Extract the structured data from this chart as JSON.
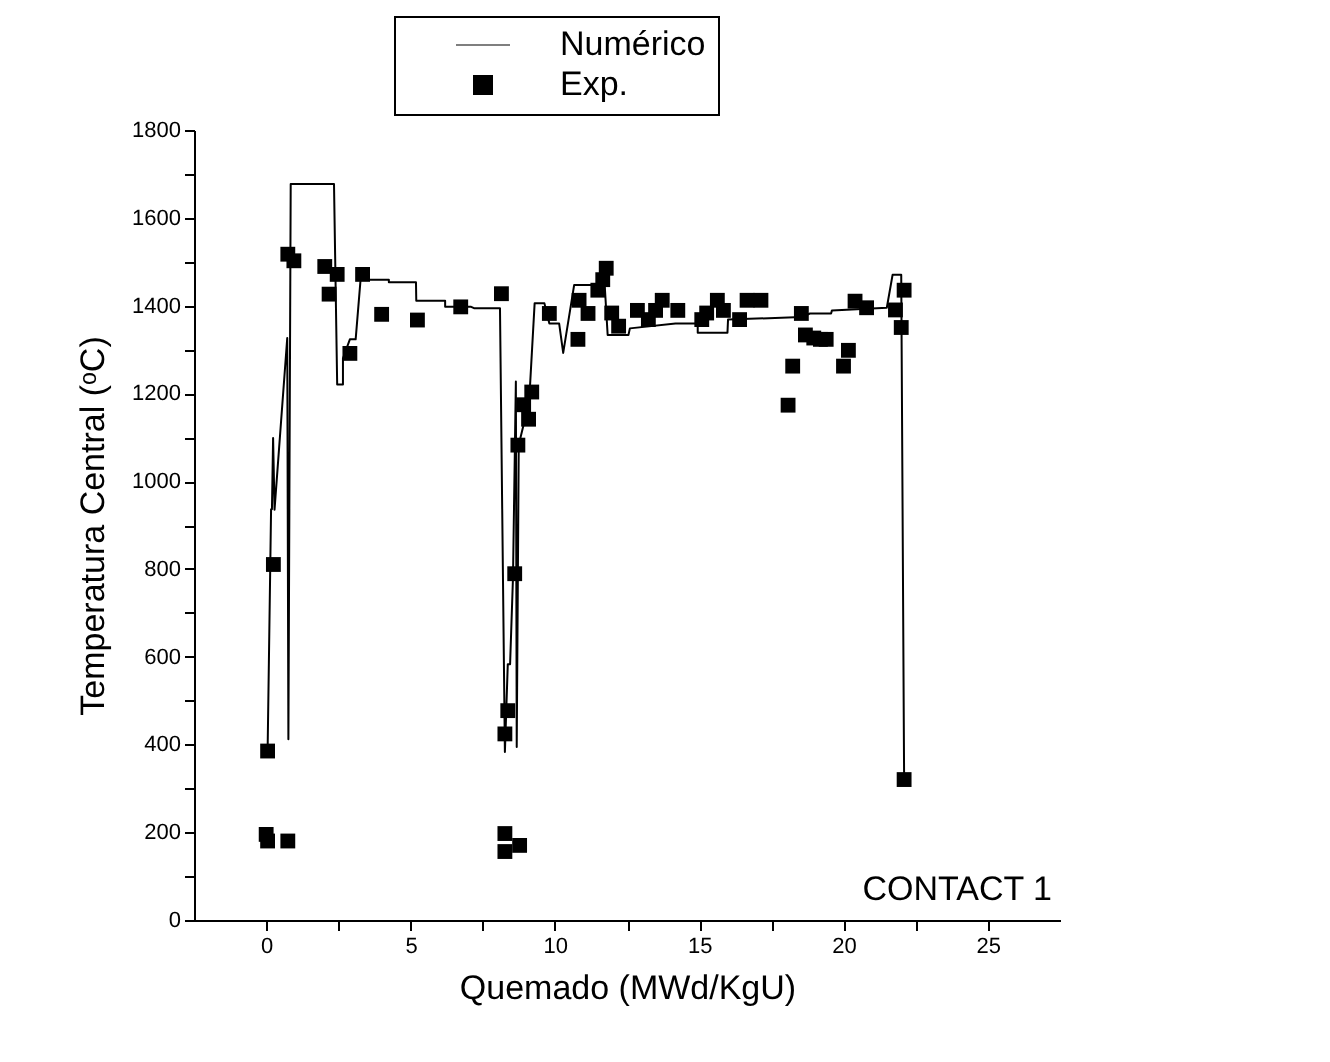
{
  "chart_data": {
    "type": "scatter",
    "xlabel": "Quemado (MWd/KgU)",
    "ylabel": "Temperatura Central (ᵒC)",
    "xlim": [
      -2.5,
      27.5
    ],
    "xticks": [
      0,
      5,
      10,
      15,
      20,
      25,
      {
        "value": 2.5,
        "label": null
      },
      {
        "value": 7.5,
        "label": null
      },
      {
        "value": 12.5,
        "label": null
      },
      {
        "value": 17.5,
        "label": null
      },
      {
        "value": 22.5,
        "label": null
      }
    ],
    "ylim": [
      0,
      1800
    ],
    "yticks": [
      0,
      200,
      400,
      600,
      800,
      1000,
      1200,
      1400,
      1600,
      1800,
      {
        "value": 100,
        "label": null
      },
      {
        "value": 300,
        "label": null
      },
      {
        "value": 500,
        "label": null
      },
      {
        "value": 700,
        "label": null
      },
      {
        "value": 900,
        "label": null
      },
      {
        "value": 1100,
        "label": null
      },
      {
        "value": 1300,
        "label": null
      },
      {
        "value": 1500,
        "label": null
      },
      {
        "value": 1700,
        "label": null
      }
    ],
    "legend": "top",
    "grid": false,
    "annotations": [
      "CONTACT 1"
    ],
    "series": [
      {
        "name": "Numérico",
        "type": "line",
        "color": "#000000",
        "line_style": "solid",
        "marker": "none",
        "x": [
          0.05,
          0.17,
          0.2,
          0.24,
          0.29,
          0.73,
          0.77,
          0.85,
          2.35,
          2.46,
          2.66,
          2.66,
          2.9,
          3.1,
          3.27,
          4.25,
          4.25,
          5.19,
          5.2,
          6.2,
          6.2,
          7.1,
          7.2,
          8.1,
          8.27,
          8.37,
          8.45,
          8.55,
          8.65,
          8.68,
          8.75,
          8.92,
          9.13,
          9.3,
          9.64,
          9.81,
          10.15,
          10.29,
          10.67,
          11.44,
          11.7,
          11.83,
          12.55,
          12.6,
          14.18,
          14.95,
          14.95,
          15.98,
          16.0,
          18.54,
          18.84,
          19.57,
          19.6,
          21.5,
          21.7,
          22.0,
          22.1
        ],
        "values": [
          385,
          936,
          936,
          1098,
          935,
          1326,
          412,
          1677,
          1677,
          1220,
          1220,
          1280,
          1323,
          1323,
          1459,
          1459,
          1453,
          1453,
          1411,
          1411,
          1397,
          1397,
          1394,
          1394,
          383,
          583,
          583,
          780,
          1227,
          394,
          1083,
          1129,
          1205,
          1405,
          1405,
          1359,
          1359,
          1292,
          1447,
          1447,
          1477,
          1333,
          1333,
          1348,
          1359,
          1359,
          1338,
          1338,
          1368,
          1374,
          1382,
          1382,
          1389,
          1395,
          1470,
          1470,
          320
        ]
      },
      {
        "name": "Exp.",
        "type": "scatter",
        "color": "#000000",
        "marker": "square",
        "x": [
          0.05,
          0.0,
          0.05,
          0.25,
          0.75,
          0.75,
          0.96,
          2.03,
          2.46,
          2.18,
          2.9,
          3.34,
          4.0,
          5.24,
          6.74,
          8.15,
          8.27,
          8.37,
          8.27,
          8.27,
          8.78,
          8.61,
          8.72,
          8.92,
          9.09,
          9.2,
          9.81,
          10.84,
          10.8,
          11.15,
          11.49,
          11.66,
          11.78,
          11.97,
          12.21,
          12.86,
          13.24,
          13.49,
          13.72,
          14.26,
          15.09,
          15.26,
          15.63,
          15.84,
          16.4,
          16.66,
          17.14,
          18.54,
          18.24,
          18.08,
          18.68,
          18.97,
          19.2,
          19.4,
          20.0,
          20.17,
          20.4,
          20.8,
          21.8,
          22.0,
          22.1,
          22.1
        ],
        "values": [
          385,
          195,
          180,
          810,
          180,
          1517,
          1502,
          1489,
          1471,
          1426,
          1291,
          1471,
          1380,
          1367,
          1397,
          1427,
          424,
          477,
          197,
          156,
          170,
          789,
          1082,
          1174,
          1141,
          1203,
          1382,
          1412,
          1323,
          1382,
          1435,
          1459,
          1485,
          1383,
          1353,
          1389,
          1368,
          1389,
          1412,
          1389,
          1368,
          1383,
          1412,
          1389,
          1368,
          1412,
          1412,
          1382,
          1262,
          1173,
          1333,
          1326,
          1323,
          1323,
          1262,
          1298,
          1410,
          1395,
          1390,
          1350,
          1435,
          320
        ]
      }
    ]
  }
}
